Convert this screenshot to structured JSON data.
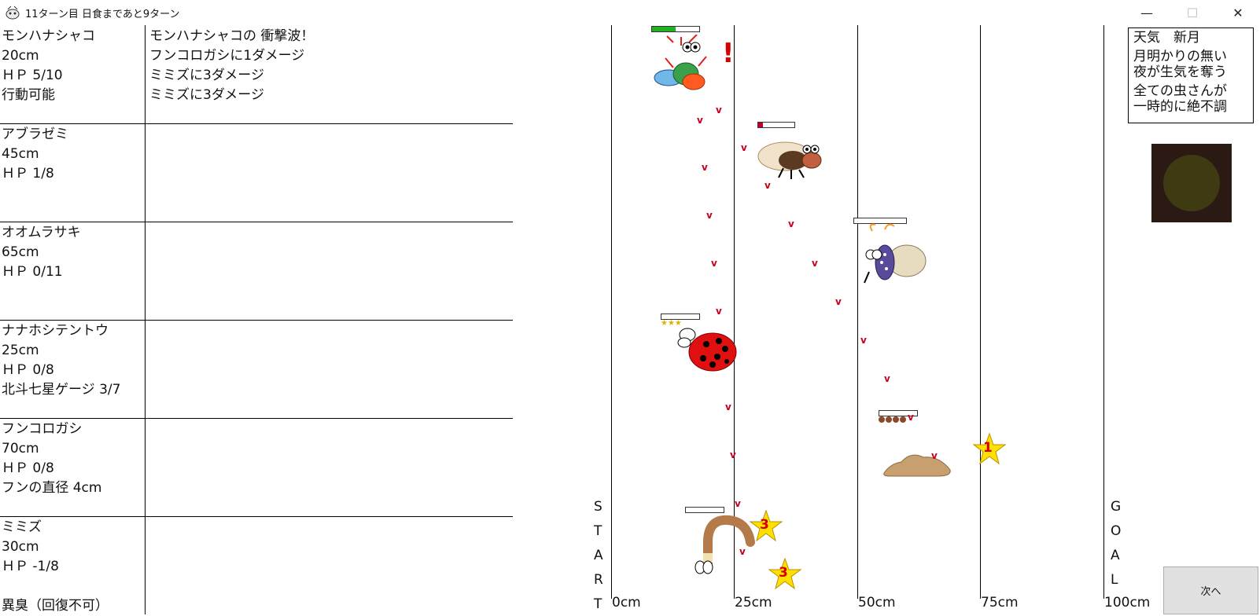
{
  "window": {
    "title": "11ターン目 日食まであと9ターン",
    "minimize_label": "—",
    "maximize_label": "☐",
    "close_label": "✕"
  },
  "status_rows": [
    {
      "lines": [
        "モンハナシャコ",
        "20cm",
        "ＨＰ 5/10",
        "行動可能"
      ]
    },
    {
      "lines": [
        "アブラゼミ",
        "45cm",
        "ＨＰ 1/8"
      ]
    },
    {
      "lines": [
        "オオムラサキ",
        "65cm",
        "ＨＰ 0/11"
      ]
    },
    {
      "lines": [
        "ナナホシテントウ",
        "25cm",
        "ＨＰ 0/8",
        "北斗七星ゲージ 3/7"
      ]
    },
    {
      "lines": [
        "フンコロガシ",
        "70cm",
        "ＨＰ 0/8",
        "フンの直径 4cm"
      ]
    },
    {
      "lines": [
        "ミミズ",
        "30cm",
        "ＨＰ -1/8",
        "",
        "異臭（回復不可）"
      ]
    }
  ],
  "battle_log": [
    "モンハナシャコの 衝撃波！",
    "フンコロガシに1ダメージ",
    "ミミズに3ダメージ",
    "ミミズに3ダメージ"
  ],
  "track": {
    "start_letters": [
      "S",
      "T",
      "A",
      "R",
      "T"
    ],
    "goal_letters": [
      "G",
      "O",
      "A",
      "L"
    ],
    "axis_labels": [
      "0cm",
      "25cm",
      "50cm",
      "75cm",
      "100cm"
    ]
  },
  "racers": [
    {
      "name": "モンハナシャコ",
      "hp_fraction": 0.5,
      "bar_color": "#20b020"
    },
    {
      "name": "アブラゼミ",
      "hp_fraction": 0.125,
      "bar_color": "#c0002a"
    },
    {
      "name": "オオムラサキ",
      "hp_fraction": 0,
      "bar_color": "#c0002a"
    },
    {
      "name": "ナナホシテントウ",
      "hp_fraction": 0,
      "bar_color": "#c0002a",
      "stars": "★★★"
    },
    {
      "name": "フンコロガシ",
      "hp_fraction": 0,
      "bar_color": "#c0002a"
    },
    {
      "name": "ミミズ",
      "hp_fraction": 0,
      "bar_color": "#c0002a"
    }
  ],
  "effects": {
    "alert_mark": "!",
    "star_labels": [
      "1",
      "3",
      "3"
    ],
    "heart_glyph": "v"
  },
  "weather": {
    "heading": "天気　新月",
    "line1": "月明かりの無い",
    "line2": "夜が生気を奪う",
    "line3": "全ての虫さんが",
    "line4": "一時的に絶不調"
  },
  "next_button": {
    "label": "次へ"
  }
}
